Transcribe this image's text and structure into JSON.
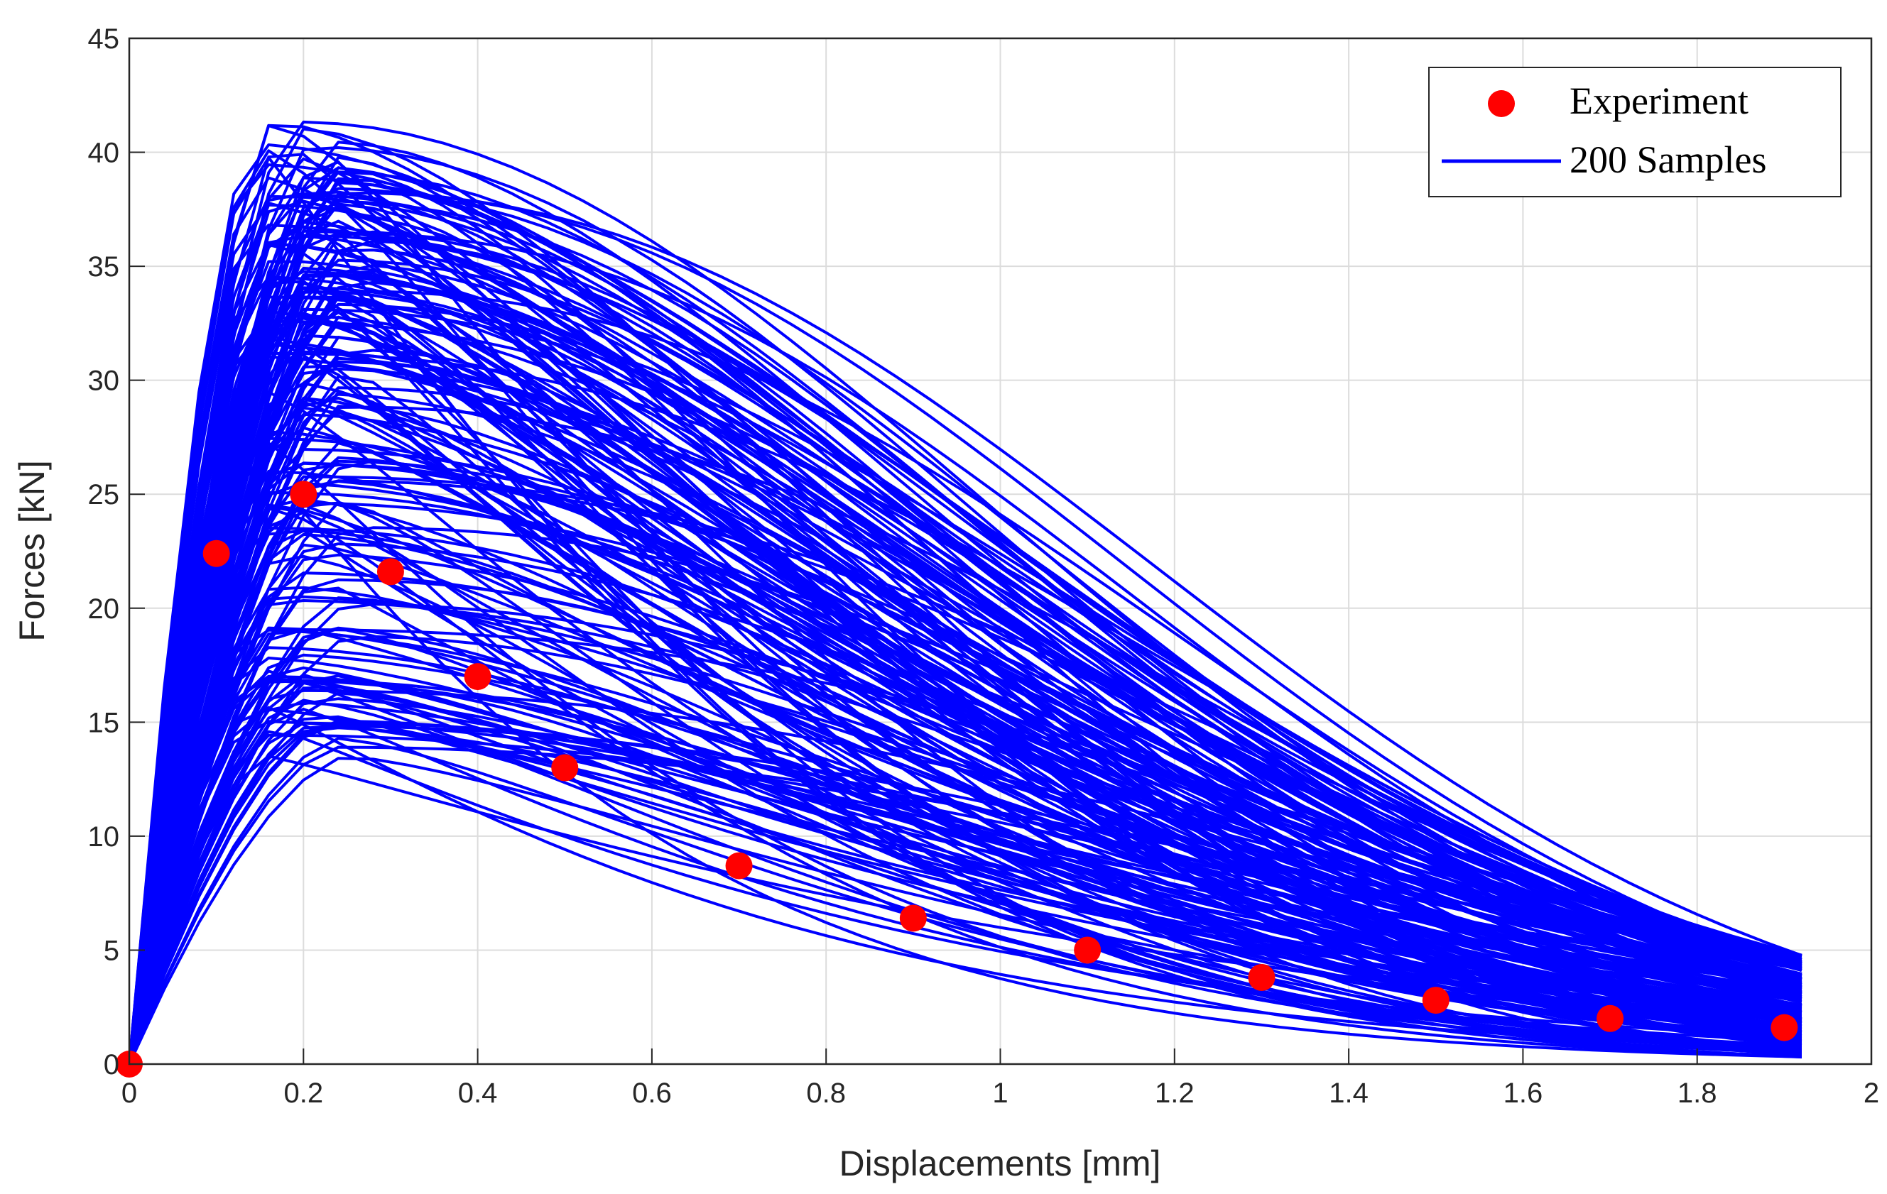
{
  "chart_data": {
    "type": "line",
    "xlabel": "Displacements [mm]",
    "ylabel": "Forces [kN]",
    "xlim": [
      0,
      2
    ],
    "ylim": [
      0,
      45
    ],
    "x_ticks": [
      "0",
      "0.2",
      "0.4",
      "0.6",
      "0.8",
      "1",
      "1.2",
      "1.4",
      "1.6",
      "1.8",
      "2"
    ],
    "y_ticks": [
      "0",
      "5",
      "10",
      "15",
      "20",
      "25",
      "30",
      "35",
      "40",
      "45"
    ],
    "grid": true,
    "legend_position": "top-right",
    "legend": [
      "Experiment",
      "200 Samples"
    ],
    "colors": {
      "experiment": "#ff0000",
      "samples": "#0000ff",
      "axis": "#262626",
      "grid": "#dcdcdc"
    },
    "experiment": {
      "name": "Experiment",
      "x": [
        0,
        0.1,
        0.2,
        0.3,
        0.4,
        0.5,
        0.7,
        0.9,
        1.1,
        1.3,
        1.5,
        1.7,
        1.9
      ],
      "y": [
        0,
        22.4,
        25.0,
        21.6,
        17.0,
        13.0,
        8.7,
        6.4,
        5.0,
        3.8,
        2.8,
        2.0,
        1.6
      ]
    },
    "samples": {
      "name": "200 Samples",
      "count": 200,
      "x_grid": [
        0,
        0.04,
        0.08,
        0.12,
        0.16,
        0.2,
        0.24,
        0.28,
        0.32,
        0.36,
        0.4,
        0.44,
        0.48,
        0.52,
        0.56,
        0.6,
        0.64,
        0.68,
        0.72,
        0.76,
        0.8,
        0.84,
        0.88,
        0.92,
        0.96,
        1.0,
        1.04,
        1.08,
        1.12,
        1.16,
        1.2,
        1.24,
        1.28,
        1.32,
        1.36,
        1.4,
        1.44,
        1.48,
        1.52,
        1.56,
        1.6,
        1.64,
        1.68,
        1.72,
        1.76,
        1.8,
        1.84,
        1.88,
        1.92
      ],
      "peak_force_range": [
        13.5,
        41.5
      ],
      "peak_displacement_range": [
        0.14,
        0.26
      ],
      "end_force_range": [
        0.3,
        4.8
      ]
    }
  }
}
